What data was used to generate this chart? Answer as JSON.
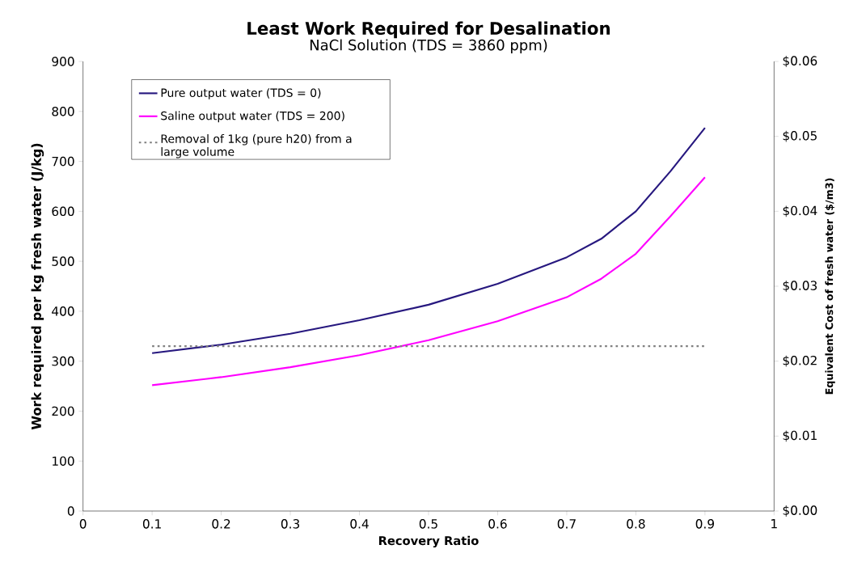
{
  "chart_data": {
    "type": "line",
    "title": "Least Work Required for Desalination",
    "subtitle": "NaCl Solution (TDS = 3860 ppm)",
    "xlabel": "Recovery Ratio",
    "ylabel": "Work required per kg fresh water (J/kg)",
    "y2label": "Equivalent Cost of fresh water ($/m3)",
    "x": [
      0.1,
      0.2,
      0.3,
      0.4,
      0.5,
      0.6,
      0.7,
      0.75,
      0.8,
      0.85,
      0.9
    ],
    "series": [
      {
        "name": "Pure output water (TDS = 0)",
        "color": "#27187f",
        "values": [
          316,
          333,
          355,
          382,
          413,
          455,
          508,
          545,
          600,
          680,
          767
        ]
      },
      {
        "name": "Saline output water (TDS = 200)",
        "color": "#ff00ff",
        "values": [
          252,
          268,
          288,
          312,
          342,
          380,
          428,
          465,
          515,
          590,
          668
        ]
      },
      {
        "name": "Removal of 1kg (pure h20) from a large volume",
        "color": "#808080",
        "line_style": "dotted",
        "x": [
          0.1,
          0.9
        ],
        "values": [
          330,
          330
        ]
      }
    ],
    "xlim": [
      0,
      1
    ],
    "xticks": [
      0,
      0.1,
      0.2,
      0.3,
      0.4,
      0.5,
      0.6,
      0.7,
      0.8,
      0.9,
      1
    ],
    "ylim": [
      0,
      900
    ],
    "yticks": [
      0,
      100,
      200,
      300,
      400,
      500,
      600,
      700,
      800,
      900
    ],
    "y2lim": [
      0,
      0.06
    ],
    "y2ticks": [
      {
        "value": 0,
        "label": "$0.00"
      },
      {
        "value": 0.01,
        "label": "$0.01"
      },
      {
        "value": 0.02,
        "label": "$0.02"
      },
      {
        "value": 0.03,
        "label": "$0.03"
      },
      {
        "value": 0.04,
        "label": "$0.04"
      },
      {
        "value": 0.05,
        "label": "$0.05"
      },
      {
        "value": 0.06,
        "label": "$0.06"
      }
    ],
    "legend": "top left",
    "grid": false,
    "marker": "none"
  }
}
